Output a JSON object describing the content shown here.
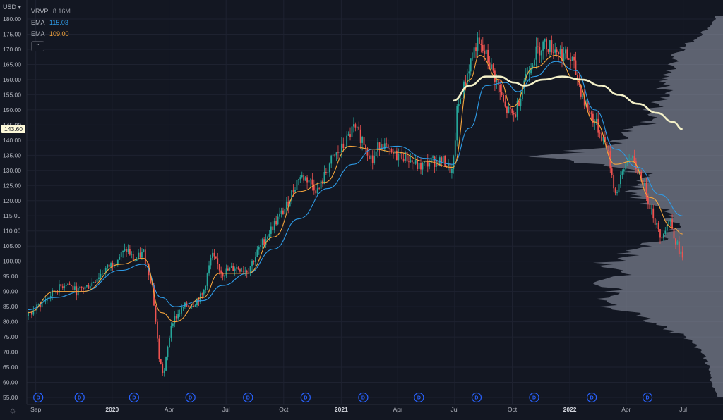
{
  "header": {
    "currency": "USD",
    "collapse_icon": "chevron-up-icon",
    "collapse_label": "⌃"
  },
  "legend": {
    "vrvp": {
      "label": "VRVP",
      "value": "8.16M"
    },
    "ema_fast": {
      "label": "EMA",
      "value": "115.03",
      "color": "#2e9be6"
    },
    "ema_slow": {
      "label": "EMA",
      "value": "109.00",
      "color": "#f6a53c"
    }
  },
  "colors": {
    "background": "#131722",
    "grid": "#1e2230",
    "up": "#26a69a",
    "down": "#ef5350",
    "ema_fast": "#2e9be6",
    "ema_slow": "#f6a53c",
    "sma_long": "#f3f0c8",
    "volume_profile": "#9aa0b0"
  },
  "price_badge": "143.60",
  "dividend_marker_label": "D",
  "chart_data": {
    "type": "line",
    "title": "",
    "yaxis": {
      "range": [
        55,
        182
      ],
      "ticks": [
        "180.00",
        "175.00",
        "170.00",
        "165.00",
        "160.00",
        "155.00",
        "150.00",
        "145.00",
        "140.00",
        "135.00",
        "130.00",
        "125.00",
        "120.00",
        "115.00",
        "110.00",
        "105.00",
        "100.00",
        "95.00",
        "90.00",
        "85.00",
        "80.00",
        "75.00",
        "70.00",
        "65.00",
        "60.00",
        "55.00"
      ]
    },
    "xaxis": {
      "ticks": [
        {
          "label": "Sep",
          "bold": false
        },
        {
          "label": "2020",
          "bold": true
        },
        {
          "label": "Apr",
          "bold": false
        },
        {
          "label": "Jul",
          "bold": false
        },
        {
          "label": "Oct",
          "bold": false
        },
        {
          "label": "2021",
          "bold": true
        },
        {
          "label": "Apr",
          "bold": false
        },
        {
          "label": "Jul",
          "bold": false
        },
        {
          "label": "Oct",
          "bold": false
        },
        {
          "label": "2022",
          "bold": true
        },
        {
          "label": "Apr",
          "bold": false
        },
        {
          "label": "Jul",
          "bold": false
        }
      ]
    },
    "dividend_count": 12,
    "price_path": [
      [
        "2019-08-20",
        82
      ],
      [
        "2019-09-10",
        86
      ],
      [
        "2019-10-01",
        90
      ],
      [
        "2019-10-20",
        93
      ],
      [
        "2019-11-05",
        90
      ],
      [
        "2019-11-25",
        92
      ],
      [
        "2019-12-15",
        96
      ],
      [
        "2020-01-10",
        101
      ],
      [
        "2020-01-25",
        104
      ],
      [
        "2020-02-05",
        100
      ],
      [
        "2020-02-20",
        103
      ],
      [
        "2020-03-05",
        92
      ],
      [
        "2020-03-16",
        68
      ],
      [
        "2020-03-23",
        62
      ],
      [
        "2020-04-05",
        80
      ],
      [
        "2020-04-25",
        85
      ],
      [
        "2020-05-10",
        86
      ],
      [
        "2020-05-25",
        89
      ],
      [
        "2020-06-08",
        102
      ],
      [
        "2020-06-25",
        96
      ],
      [
        "2020-07-15",
        98
      ],
      [
        "2020-08-05",
        97
      ],
      [
        "2020-08-25",
        105
      ],
      [
        "2020-09-15",
        112
      ],
      [
        "2020-10-05",
        118
      ],
      [
        "2020-10-25",
        128
      ],
      [
        "2020-11-10",
        127
      ],
      [
        "2020-11-25",
        123
      ],
      [
        "2020-12-15",
        133
      ],
      [
        "2021-01-05",
        138
      ],
      [
        "2021-01-20",
        144
      ],
      [
        "2021-02-05",
        140
      ],
      [
        "2021-02-20",
        133
      ],
      [
        "2021-03-05",
        140
      ],
      [
        "2021-03-20",
        135
      ],
      [
        "2021-04-10",
        135
      ],
      [
        "2021-05-05",
        131
      ],
      [
        "2021-05-25",
        133
      ],
      [
        "2021-06-15",
        133
      ],
      [
        "2021-06-28",
        129
      ],
      [
        "2021-07-05",
        150
      ],
      [
        "2021-07-15",
        157
      ],
      [
        "2021-07-25",
        165
      ],
      [
        "2021-08-05",
        172
      ],
      [
        "2021-08-20",
        168
      ],
      [
        "2021-09-05",
        160
      ],
      [
        "2021-09-20",
        150
      ],
      [
        "2021-10-05",
        148
      ],
      [
        "2021-10-20",
        160
      ],
      [
        "2021-11-05",
        168
      ],
      [
        "2021-11-20",
        172
      ],
      [
        "2021-12-10",
        170
      ],
      [
        "2022-01-05",
        166
      ],
      [
        "2022-01-25",
        152
      ],
      [
        "2022-02-10",
        146
      ],
      [
        "2022-03-01",
        138
      ],
      [
        "2022-03-15",
        122
      ],
      [
        "2022-04-05",
        135
      ],
      [
        "2022-04-25",
        128
      ],
      [
        "2022-05-10",
        118
      ],
      [
        "2022-05-25",
        108
      ],
      [
        "2022-06-10",
        114
      ],
      [
        "2022-06-20",
        106
      ],
      [
        "2022-06-30",
        101
      ]
    ],
    "series": [
      {
        "name": "EMA",
        "color": "#2e9be6",
        "values": [
          [
            "2019-08-20",
            84
          ],
          [
            "2019-10-01",
            88
          ],
          [
            "2019-11-15",
            90
          ],
          [
            "2020-01-15",
            97
          ],
          [
            "2020-02-20",
            99
          ],
          [
            "2020-03-20",
            88
          ],
          [
            "2020-04-10",
            85
          ],
          [
            "2020-05-25",
            87
          ],
          [
            "2020-06-25",
            92
          ],
          [
            "2020-08-05",
            96
          ],
          [
            "2020-09-15",
            104
          ],
          [
            "2020-10-25",
            114
          ],
          [
            "2020-12-10",
            124
          ],
          [
            "2021-01-20",
            132
          ],
          [
            "2021-02-20",
            137
          ],
          [
            "2021-04-01",
            138
          ],
          [
            "2021-05-15",
            134
          ],
          [
            "2021-06-28",
            132
          ],
          [
            "2021-07-25",
            144
          ],
          [
            "2021-08-20",
            158
          ],
          [
            "2021-09-20",
            159
          ],
          [
            "2021-10-10",
            156
          ],
          [
            "2021-11-05",
            161
          ],
          [
            "2021-12-10",
            166
          ],
          [
            "2022-01-10",
            163
          ],
          [
            "2022-02-10",
            150
          ],
          [
            "2022-03-15",
            137
          ],
          [
            "2022-04-20",
            131
          ],
          [
            "2022-05-25",
            122
          ],
          [
            "2022-06-30",
            115
          ]
        ]
      },
      {
        "name": "EMA",
        "color": "#f6a53c",
        "values": [
          [
            "2019-08-20",
            83
          ],
          [
            "2019-10-01",
            90
          ],
          [
            "2019-11-15",
            90
          ],
          [
            "2020-01-15",
            99
          ],
          [
            "2020-02-20",
            101
          ],
          [
            "2020-03-20",
            83
          ],
          [
            "2020-04-10",
            80
          ],
          [
            "2020-05-25",
            88
          ],
          [
            "2020-06-20",
            96
          ],
          [
            "2020-08-05",
            96
          ],
          [
            "2020-09-15",
            108
          ],
          [
            "2020-10-25",
            123
          ],
          [
            "2020-12-05",
            126
          ],
          [
            "2021-01-15",
            138
          ],
          [
            "2021-02-20",
            137
          ],
          [
            "2021-04-01",
            136
          ],
          [
            "2021-05-15",
            133
          ],
          [
            "2021-06-28",
            131
          ],
          [
            "2021-07-25",
            160
          ],
          [
            "2021-08-10",
            168
          ],
          [
            "2021-09-10",
            160
          ],
          [
            "2021-10-01",
            151
          ],
          [
            "2021-11-05",
            164
          ],
          [
            "2021-12-10",
            168
          ],
          [
            "2022-01-10",
            160
          ],
          [
            "2022-02-10",
            146
          ],
          [
            "2022-03-15",
            132
          ],
          [
            "2022-04-10",
            133
          ],
          [
            "2022-05-10",
            121
          ],
          [
            "2022-06-15",
            111
          ],
          [
            "2022-06-30",
            109
          ]
        ]
      },
      {
        "name": "",
        "color": "#f3f0c8",
        "values": [
          [
            "2021-06-28",
            153
          ],
          [
            "2021-07-25",
            158
          ],
          [
            "2021-08-20",
            161
          ],
          [
            "2021-09-10",
            161
          ],
          [
            "2021-10-05",
            159
          ],
          [
            "2021-10-20",
            158
          ],
          [
            "2021-11-20",
            160
          ],
          [
            "2021-12-20",
            161
          ],
          [
            "2022-01-20",
            160
          ],
          [
            "2022-02-20",
            158
          ],
          [
            "2022-03-20",
            155
          ],
          [
            "2022-04-20",
            152
          ],
          [
            "2022-05-20",
            149
          ],
          [
            "2022-06-15",
            146
          ],
          [
            "2022-06-30",
            143.6
          ]
        ]
      }
    ],
    "volume_profile": {
      "bins_price": [
        57,
        60,
        63,
        66,
        69,
        72,
        75,
        78,
        81,
        84,
        87,
        90,
        93,
        96,
        99,
        102,
        105,
        108,
        111,
        114,
        117,
        120,
        123,
        126,
        129,
        132,
        135,
        138,
        141,
        144,
        147,
        150,
        153,
        156,
        159,
        162,
        165,
        168,
        171,
        174,
        177,
        180
      ],
      "bins_volume": [
        0.04,
        0.06,
        0.07,
        0.08,
        0.1,
        0.14,
        0.2,
        0.3,
        0.42,
        0.55,
        0.62,
        0.58,
        0.6,
        0.55,
        0.62,
        0.5,
        0.42,
        0.3,
        0.25,
        0.28,
        0.32,
        0.45,
        0.52,
        0.4,
        0.42,
        0.72,
        0.95,
        0.55,
        0.5,
        0.45,
        0.35,
        0.38,
        0.32,
        0.3,
        0.33,
        0.28,
        0.26,
        0.28,
        0.2,
        0.14,
        0.08,
        0.04
      ]
    }
  }
}
